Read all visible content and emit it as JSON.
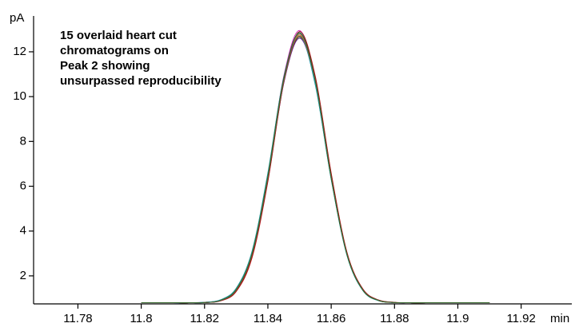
{
  "chart_data": {
    "type": "line",
    "annotation": [
      "15 overlaid heart cut",
      "chromatograms on",
      "Peak 2 showing",
      "unsurpassed reproducibility"
    ],
    "y_label": "pA",
    "x_label": "min",
    "xlim": [
      11.766,
      11.936
    ],
    "ylim": [
      0.75,
      13.6
    ],
    "xticks": [
      11.78,
      11.8,
      11.82,
      11.84,
      11.86,
      11.88,
      11.9,
      11.92
    ],
    "yticks": [
      2,
      4,
      6,
      8,
      10,
      12
    ],
    "x": [
      11.8,
      11.805,
      11.81,
      11.815,
      11.82,
      11.825,
      11.83,
      11.835,
      11.84,
      11.845,
      11.85,
      11.855,
      11.86,
      11.865,
      11.87,
      11.875,
      11.88,
      11.885,
      11.89,
      11.9,
      11.91
    ],
    "series": [
      {
        "color": "#1f3fbf",
        "values": [
          0.8,
          0.8,
          0.8,
          0.8,
          0.81,
          0.9,
          1.37,
          2.96,
          6.4,
          10.8,
          12.85,
          10.65,
          6.4,
          2.96,
          1.37,
          0.9,
          0.81,
          0.8,
          0.8,
          0.8,
          0.8
        ]
      },
      {
        "color": "#d62020",
        "values": [
          0.8,
          0.8,
          0.8,
          0.8,
          0.81,
          0.88,
          1.3,
          2.8,
          6.2,
          10.6,
          12.9,
          10.9,
          6.6,
          3.05,
          1.42,
          0.92,
          0.82,
          0.8,
          0.8,
          0.8,
          0.8
        ]
      },
      {
        "color": "#1a8f3a",
        "values": [
          0.8,
          0.8,
          0.8,
          0.8,
          0.81,
          0.9,
          1.38,
          2.98,
          6.42,
          10.68,
          12.7,
          10.62,
          6.35,
          2.93,
          1.36,
          0.9,
          0.81,
          0.8,
          0.8,
          0.8,
          0.8
        ]
      },
      {
        "color": "#d020b0",
        "values": [
          0.8,
          0.8,
          0.8,
          0.8,
          0.82,
          0.92,
          1.4,
          3.02,
          6.5,
          10.9,
          12.95,
          10.75,
          6.42,
          2.97,
          1.38,
          0.9,
          0.81,
          0.8,
          0.8,
          0.8,
          0.8
        ]
      },
      {
        "color": "#108080",
        "values": [
          0.8,
          0.8,
          0.8,
          0.8,
          0.82,
          0.93,
          1.45,
          3.1,
          6.6,
          10.85,
          12.75,
          10.5,
          6.3,
          2.9,
          1.34,
          0.89,
          0.81,
          0.8,
          0.8,
          0.8,
          0.8
        ]
      },
      {
        "color": "#202020",
        "values": [
          0.8,
          0.8,
          0.8,
          0.8,
          0.81,
          0.89,
          1.35,
          2.92,
          6.33,
          10.62,
          12.65,
          10.6,
          6.38,
          2.97,
          1.38,
          0.91,
          0.81,
          0.8,
          0.8,
          0.8,
          0.8
        ]
      },
      {
        "color": "#808000",
        "values": [
          0.8,
          0.8,
          0.8,
          0.8,
          0.81,
          0.9,
          1.36,
          2.94,
          6.37,
          10.7,
          12.8,
          10.72,
          6.42,
          2.98,
          1.38,
          0.9,
          0.81,
          0.8,
          0.8,
          0.8,
          0.8
        ]
      },
      {
        "color": "#6a2090",
        "values": [
          0.8,
          0.8,
          0.8,
          0.8,
          0.81,
          0.89,
          1.33,
          2.88,
          6.28,
          10.58,
          12.6,
          10.63,
          6.45,
          3.0,
          1.4,
          0.91,
          0.81,
          0.8,
          0.8,
          0.8,
          0.8
        ]
      },
      {
        "color": "#102070",
        "values": [
          0.8,
          0.8,
          0.8,
          0.8,
          0.81,
          0.91,
          1.39,
          3.0,
          6.46,
          10.78,
          12.85,
          10.7,
          6.37,
          2.95,
          1.37,
          0.9,
          0.81,
          0.8,
          0.8,
          0.8,
          0.8
        ]
      },
      {
        "color": "#20b0d0",
        "values": [
          0.8,
          0.8,
          0.8,
          0.8,
          0.82,
          0.92,
          1.42,
          3.05,
          6.52,
          10.75,
          12.7,
          10.55,
          6.32,
          2.92,
          1.35,
          0.89,
          0.81,
          0.8,
          0.8,
          0.8,
          0.8
        ]
      },
      {
        "color": "#e07020",
        "values": [
          0.8,
          0.8,
          0.8,
          0.8,
          0.81,
          0.9,
          1.36,
          2.95,
          6.38,
          10.7,
          12.75,
          10.7,
          6.4,
          2.96,
          1.37,
          0.9,
          0.81,
          0.8,
          0.8,
          0.8,
          0.8
        ]
      },
      {
        "color": "#8b1a1a",
        "values": [
          0.8,
          0.8,
          0.8,
          0.8,
          0.81,
          0.89,
          1.32,
          2.86,
          6.25,
          10.65,
          12.9,
          10.85,
          6.55,
          3.03,
          1.41,
          0.92,
          0.82,
          0.8,
          0.8,
          0.8,
          0.8
        ]
      },
      {
        "color": "#707070",
        "values": [
          0.8,
          0.8,
          0.8,
          0.8,
          0.81,
          0.9,
          1.37,
          2.97,
          6.41,
          10.73,
          12.8,
          10.7,
          6.39,
          2.95,
          1.37,
          0.9,
          0.81,
          0.8,
          0.8,
          0.8,
          0.8
        ]
      },
      {
        "color": "#8b5a2b",
        "values": [
          0.8,
          0.8,
          0.8,
          0.8,
          0.81,
          0.9,
          1.37,
          2.96,
          6.39,
          10.66,
          12.7,
          10.66,
          6.39,
          2.96,
          1.37,
          0.9,
          0.81,
          0.8,
          0.8,
          0.8,
          0.8
        ]
      },
      {
        "color": "#2e6b2e",
        "values": [
          0.8,
          0.8,
          0.8,
          0.8,
          0.81,
          0.91,
          1.4,
          3.01,
          6.47,
          10.79,
          12.85,
          10.68,
          6.36,
          2.94,
          1.36,
          0.9,
          0.81,
          0.8,
          0.8,
          0.8,
          0.8
        ]
      }
    ]
  }
}
